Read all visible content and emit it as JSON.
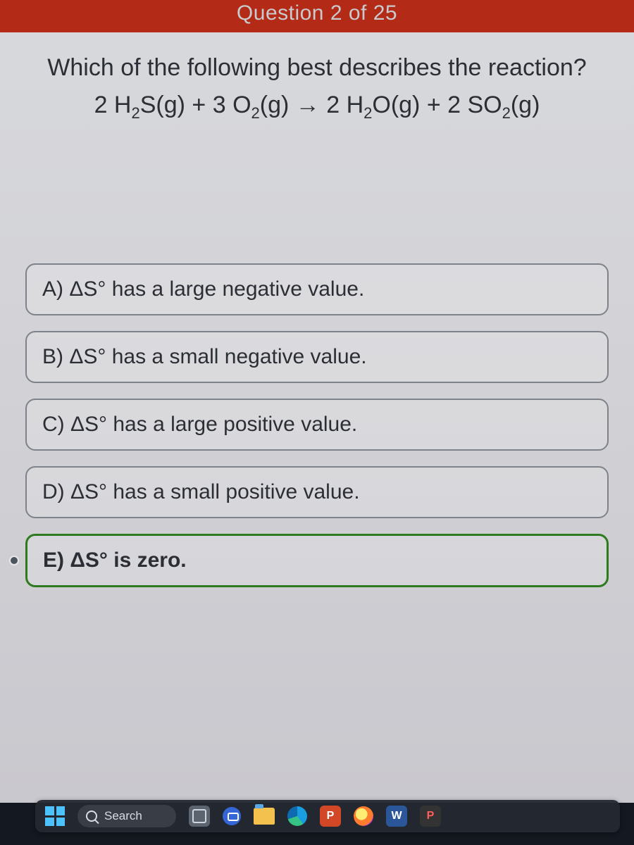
{
  "header": {
    "progress_text": "Question 2 of 25"
  },
  "question": {
    "prompt": "Which of the following best describes the reaction?",
    "equation_html": "2 H<sub>2</sub>S(g) + 3 O<sub>2</sub>(g) → 2 H<sub>2</sub>O(g) + 2 SO<sub>2</sub>(g)"
  },
  "options": [
    {
      "key": "A",
      "text": "ΔS° has a large negative value.",
      "selected": false
    },
    {
      "key": "B",
      "text": "ΔS° has a small negative value.",
      "selected": false
    },
    {
      "key": "C",
      "text": "ΔS° has a large positive value.",
      "selected": false
    },
    {
      "key": "D",
      "text": "ΔS° has a small positive value.",
      "selected": false
    },
    {
      "key": "E",
      "text": "ΔS° is zero.",
      "selected": true
    }
  ],
  "taskbar": {
    "search_label": "Search",
    "apps": [
      {
        "name": "task-view",
        "letter": ""
      },
      {
        "name": "chat",
        "letter": ""
      },
      {
        "name": "file-explorer",
        "letter": ""
      },
      {
        "name": "edge",
        "letter": ""
      },
      {
        "name": "powerpoint",
        "letter": "P"
      },
      {
        "name": "outlook",
        "letter": ""
      },
      {
        "name": "word",
        "letter": "W"
      },
      {
        "name": "pdf",
        "letter": "P"
      }
    ]
  },
  "colors": {
    "header_bg": "#b32a17",
    "card_bg_top": "#d8d9dc",
    "option_border": "#7e8389",
    "selected_border": "#2f7a1f",
    "text": "#2b2f35"
  }
}
